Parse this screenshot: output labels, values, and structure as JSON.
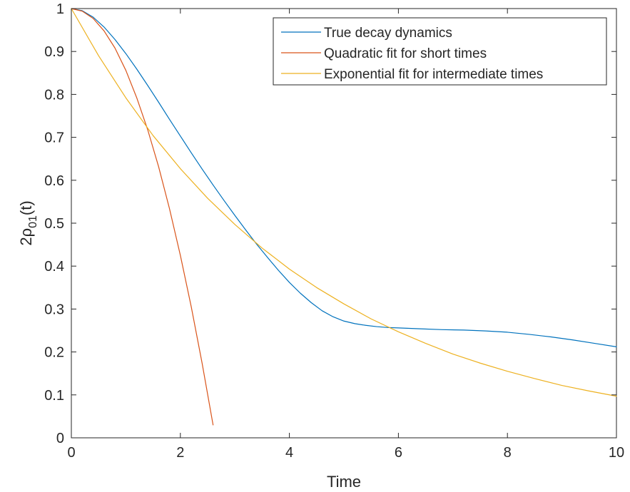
{
  "chart_data": {
    "type": "line",
    "title": "",
    "xlabel": "Time",
    "ylabel": "2ρ",
    "ylabel_sub": "01",
    "ylabel_tail": "(t)",
    "xlim": [
      0,
      10
    ],
    "ylim": [
      0,
      1
    ],
    "xticks": [
      0,
      2,
      4,
      6,
      8,
      10
    ],
    "yticks": [
      0,
      0.1,
      0.2,
      0.3,
      0.4,
      0.5,
      0.6,
      0.7,
      0.8,
      0.9,
      1
    ],
    "grid": false,
    "legend_position": "top-right",
    "series": [
      {
        "name": "True decay dynamics",
        "color": "#0072BD",
        "x": [
          0,
          0.2,
          0.4,
          0.6,
          0.8,
          1,
          1.2,
          1.4,
          1.6,
          1.8,
          2,
          2.2,
          2.4,
          2.6,
          2.8,
          3,
          3.2,
          3.4,
          3.6,
          3.8,
          4,
          4.2,
          4.4,
          4.6,
          4.8,
          5,
          5.2,
          5.4,
          5.6,
          5.8,
          6,
          6.4,
          6.8,
          7.2,
          7.6,
          8,
          8.4,
          8.8,
          9.2,
          9.6,
          10
        ],
        "y": [
          1,
          0.995,
          0.98,
          0.957,
          0.928,
          0.895,
          0.859,
          0.821,
          0.782,
          0.742,
          0.703,
          0.664,
          0.626,
          0.589,
          0.553,
          0.518,
          0.484,
          0.451,
          0.42,
          0.39,
          0.362,
          0.337,
          0.315,
          0.296,
          0.282,
          0.272,
          0.266,
          0.262,
          0.259,
          0.257,
          0.256,
          0.254,
          0.252,
          0.251,
          0.249,
          0.246,
          0.241,
          0.235,
          0.228,
          0.22,
          0.212
        ]
      },
      {
        "name": "Quadratic fit for short times",
        "color": "#D95319",
        "x": [
          0,
          0.2,
          0.4,
          0.6,
          0.8,
          1,
          1.2,
          1.4,
          1.6,
          1.8,
          2,
          2.2,
          2.4,
          2.6
        ],
        "y": [
          1,
          0.994,
          0.977,
          0.948,
          0.908,
          0.856,
          0.792,
          0.718,
          0.632,
          0.534,
          0.425,
          0.305,
          0.173,
          0.03
        ]
      },
      {
        "name": "Exponential fit for intermediate times",
        "color": "#EDB120",
        "x": [
          0,
          0.5,
          1,
          1.5,
          2,
          2.5,
          3,
          3.5,
          4,
          4.5,
          5,
          5.5,
          6,
          6.5,
          7,
          7.5,
          8,
          8.5,
          9,
          9.5,
          10
        ],
        "y": [
          1,
          0.89,
          0.792,
          0.704,
          0.627,
          0.558,
          0.497,
          0.442,
          0.393,
          0.35,
          0.312,
          0.277,
          0.247,
          0.22,
          0.195,
          0.174,
          0.155,
          0.138,
          0.122,
          0.109,
          0.097
        ]
      }
    ]
  }
}
